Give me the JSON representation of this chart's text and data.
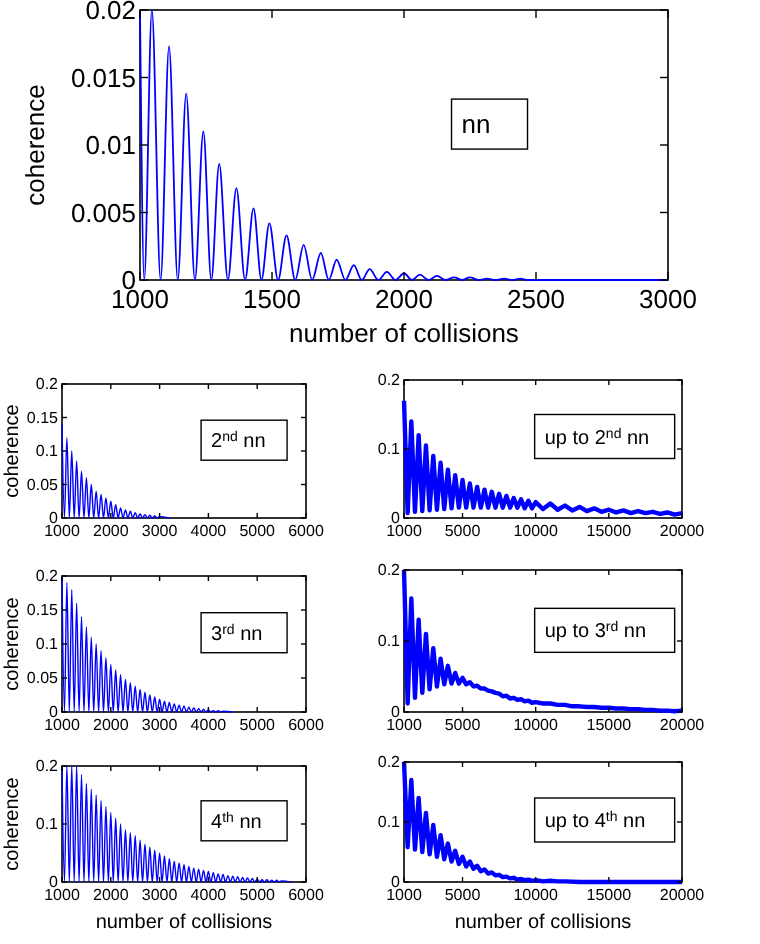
{
  "chart_data": [
    {
      "type": "line",
      "xlabel": "number of collisions",
      "ylabel": "coherence",
      "annotations": [
        "nn"
      ],
      "xlim": [
        1000,
        3000
      ],
      "ylim": [
        0,
        0.02
      ],
      "xticks": [
        1000,
        1500,
        2000,
        2500,
        3000
      ],
      "yticks": [
        0,
        0.005,
        0.01,
        0.015,
        0.02
      ],
      "color": "#0000ff",
      "x": [
        1000,
        1016,
        1045,
        1078,
        1110,
        1143,
        1175,
        1208,
        1240,
        1270,
        1300,
        1333,
        1365,
        1398,
        1430,
        1460,
        1490,
        1523,
        1555,
        1588,
        1620,
        1652,
        1685,
        1715,
        1745,
        1778,
        1810,
        1840,
        1870,
        1903,
        1935,
        1968,
        2000,
        2030,
        2060,
        2093,
        2125,
        2158,
        2190,
        2220,
        2250,
        2283,
        2315,
        2345,
        2380,
        2410,
        2440,
        2470,
        2500,
        3000
      ],
      "values": [
        0.02,
        0,
        0.02,
        0,
        0.0173,
        0,
        0.0138,
        0,
        0.011,
        0,
        0.0086,
        0,
        0.0068,
        0,
        0.0053,
        0,
        0.0042,
        0,
        0.0033,
        0,
        0.0026,
        0,
        0.002,
        0,
        0.0015,
        0,
        0.0011,
        0,
        0.0008,
        0,
        0.0006,
        0,
        0.0005,
        0,
        0.0004,
        0,
        0.0003,
        0,
        0.0002,
        0,
        0.0002,
        0,
        0.0001,
        0,
        0.0001,
        0,
        0.0001,
        0,
        0,
        0
      ]
    },
    {
      "type": "line",
      "ylabel": "coherence",
      "annotations": [
        "2$^{nd}$ nn"
      ],
      "xlim": [
        1000,
        6000
      ],
      "ylim": [
        0,
        0.2
      ],
      "xticks": [
        1000,
        2000,
        3000,
        4000,
        5000,
        6000
      ],
      "yticks": [
        0,
        0.05,
        0.1,
        0.15,
        0.2
      ],
      "color": "#0000ff",
      "x": [
        1000,
        1050,
        1100,
        1150,
        1200,
        1250,
        1300,
        1350,
        1400,
        1450,
        1500,
        1550,
        1600,
        1650,
        1700,
        1750,
        1800,
        1850,
        1900,
        1950,
        2000,
        2050,
        2100,
        2150,
        2200,
        2250,
        2300,
        2350,
        2400,
        2450,
        2500,
        2550,
        2600,
        2650,
        2700,
        2750,
        2800,
        2850,
        2900,
        2950,
        3000,
        3200
      ],
      "values": [
        0.14,
        0,
        0.12,
        0,
        0.1,
        0,
        0.085,
        0,
        0.07,
        0,
        0.06,
        0,
        0.05,
        0,
        0.04,
        0,
        0.035,
        0,
        0.03,
        0,
        0.025,
        0,
        0.02,
        0,
        0.015,
        0,
        0.012,
        0,
        0.01,
        0,
        0.008,
        0,
        0.006,
        0,
        0.005,
        0,
        0.004,
        0,
        0.003,
        0,
        0.002,
        0
      ]
    },
    {
      "type": "line",
      "annotations": [
        "up to 2$^{nd}$ nn"
      ],
      "xlim": [
        1000,
        20000
      ],
      "ylim": [
        0,
        0.2
      ],
      "xticks": [
        1000,
        5000,
        10000,
        15000,
        20000
      ],
      "yticks": [
        0,
        0.1,
        0.2
      ],
      "color": "#0000ff",
      "x": [
        1000,
        1250,
        1500,
        1750,
        2000,
        2250,
        2500,
        2750,
        3000,
        3250,
        3500,
        3750,
        4000,
        4250,
        4500,
        4750,
        5000,
        5250,
        5500,
        5750,
        6000,
        6250,
        6500,
        6750,
        7000,
        7250,
        7500,
        7750,
        8000,
        8250,
        8500,
        8750,
        9000,
        9250,
        9500,
        9750,
        10000,
        10500,
        11000,
        11500,
        12000,
        12500,
        13000,
        13500,
        14000,
        14500,
        15000,
        15500,
        16000,
        16500,
        17000,
        17500,
        18000,
        18500,
        19000,
        19500,
        20000
      ],
      "values": [
        0.17,
        0.007,
        0.14,
        0.009,
        0.12,
        0.01,
        0.105,
        0.011,
        0.09,
        0.012,
        0.08,
        0.013,
        0.07,
        0.014,
        0.062,
        0.015,
        0.055,
        0.015,
        0.05,
        0.015,
        0.045,
        0.015,
        0.041,
        0.015,
        0.038,
        0.015,
        0.035,
        0.015,
        0.032,
        0.015,
        0.029,
        0.015,
        0.027,
        0.014,
        0.025,
        0.014,
        0.023,
        0.013,
        0.021,
        0.012,
        0.018,
        0.011,
        0.016,
        0.01,
        0.014,
        0.009,
        0.012,
        0.008,
        0.011,
        0.007,
        0.01,
        0.007,
        0.009,
        0.006,
        0.008,
        0.005,
        0.007
      ]
    },
    {
      "type": "line",
      "ylabel": "coherence",
      "annotations": [
        "3$^{rd}$ nn"
      ],
      "xlim": [
        1000,
        6000
      ],
      "ylim": [
        0,
        0.2
      ],
      "xticks": [
        1000,
        2000,
        3000,
        4000,
        5000,
        6000
      ],
      "yticks": [
        0,
        0.05,
        0.1,
        0.15,
        0.2
      ],
      "color": "#0000ff",
      "x": [
        1000,
        1050,
        1100,
        1150,
        1200,
        1250,
        1300,
        1350,
        1400,
        1450,
        1500,
        1550,
        1600,
        1650,
        1700,
        1750,
        1800,
        1850,
        1900,
        1950,
        2000,
        2050,
        2100,
        2150,
        2200,
        2250,
        2300,
        2350,
        2400,
        2450,
        2500,
        2550,
        2600,
        2650,
        2700,
        2750,
        2800,
        2850,
        2900,
        2950,
        3000,
        3050,
        3100,
        3150,
        3200,
        3250,
        3300,
        3350,
        3400,
        3450,
        3500,
        3550,
        3600,
        3650,
        3700,
        3750,
        3800,
        3850,
        3900,
        3950,
        4000,
        4050,
        4100,
        4150,
        4200,
        4250,
        4300,
        4500
      ],
      "values": [
        0.2,
        0,
        0.19,
        0,
        0.18,
        0,
        0.16,
        0,
        0.14,
        0,
        0.125,
        0,
        0.11,
        0,
        0.1,
        0,
        0.09,
        0,
        0.08,
        0,
        0.07,
        0,
        0.062,
        0,
        0.055,
        0,
        0.048,
        0,
        0.043,
        0,
        0.038,
        0,
        0.033,
        0,
        0.029,
        0,
        0.025,
        0,
        0.022,
        0,
        0.019,
        0,
        0.016,
        0,
        0.014,
        0,
        0.012,
        0,
        0.01,
        0,
        0.009,
        0,
        0.007,
        0,
        0.006,
        0,
        0.005,
        0,
        0.004,
        0,
        0.003,
        0,
        0.002,
        0,
        0.002,
        0,
        0.001,
        0
      ]
    },
    {
      "type": "line",
      "annotations": [
        "up to 3$^{rd}$ nn"
      ],
      "xlim": [
        1000,
        20000
      ],
      "ylim": [
        0,
        0.2
      ],
      "xticks": [
        1000,
        5000,
        10000,
        15000,
        20000
      ],
      "yticks": [
        0,
        0.1,
        0.2
      ],
      "color": "#0000ff",
      "x": [
        1000,
        1250,
        1500,
        1750,
        2000,
        2250,
        2500,
        2750,
        3000,
        3250,
        3500,
        3750,
        4000,
        4250,
        4500,
        4750,
        5000,
        5250,
        5500,
        5750,
        6000,
        6250,
        6500,
        6750,
        7000,
        7250,
        7500,
        7750,
        8000,
        8250,
        8500,
        8750,
        9000,
        9250,
        9500,
        9750,
        10000,
        10500,
        11000,
        11500,
        12000,
        12500,
        13000,
        13500,
        14000,
        14500,
        15000,
        15500,
        16000,
        16500,
        17000,
        17500,
        18000,
        18500,
        19000,
        19500,
        20000
      ],
      "values": [
        0.2,
        0.012,
        0.16,
        0.02,
        0.13,
        0.027,
        0.11,
        0.032,
        0.09,
        0.036,
        0.075,
        0.039,
        0.065,
        0.04,
        0.055,
        0.04,
        0.048,
        0.039,
        0.042,
        0.036,
        0.037,
        0.033,
        0.033,
        0.03,
        0.029,
        0.027,
        0.026,
        0.022,
        0.023,
        0.019,
        0.02,
        0.017,
        0.018,
        0.015,
        0.016,
        0.013,
        0.014,
        0.012,
        0.012,
        0.01,
        0.01,
        0.008,
        0.008,
        0.007,
        0.007,
        0.006,
        0.006,
        0.005,
        0.005,
        0.004,
        0.004,
        0.003,
        0.003,
        0.002,
        0.002,
        0.001,
        0.002
      ]
    },
    {
      "type": "line",
      "xlabel": "number of collisions",
      "ylabel": "coherence",
      "annotations": [
        "4$^{th}$ nn"
      ],
      "xlim": [
        1000,
        6000
      ],
      "ylim": [
        0,
        0.2
      ],
      "xticks": [
        1000,
        2000,
        3000,
        4000,
        5000,
        6000
      ],
      "yticks": [
        0,
        0.1,
        0.2
      ],
      "color": "#0000ff",
      "x": [
        1000,
        1050,
        1100,
        1150,
        1200,
        1250,
        1300,
        1350,
        1400,
        1450,
        1500,
        1550,
        1600,
        1650,
        1700,
        1750,
        1800,
        1850,
        1900,
        1950,
        2000,
        2050,
        2100,
        2150,
        2200,
        2250,
        2300,
        2350,
        2400,
        2450,
        2500,
        2550,
        2600,
        2650,
        2700,
        2750,
        2800,
        2850,
        2900,
        2950,
        3000,
        3050,
        3100,
        3150,
        3200,
        3250,
        3300,
        3350,
        3400,
        3450,
        3500,
        3550,
        3600,
        3650,
        3700,
        3750,
        3800,
        3850,
        3900,
        3950,
        4000,
        4050,
        4100,
        4150,
        4200,
        4250,
        4300,
        4350,
        4400,
        4450,
        4500,
        4550,
        4600,
        4650,
        4700,
        4750,
        4800,
        4850,
        4900,
        4950,
        5000,
        5050,
        5100,
        5150,
        5200,
        5250,
        5300,
        5350,
        5400,
        5450,
        5500,
        5700
      ],
      "values": [
        0.2,
        0,
        0.2,
        0,
        0.2,
        0,
        0.2,
        0,
        0.185,
        0,
        0.17,
        0,
        0.16,
        0,
        0.15,
        0,
        0.14,
        0,
        0.13,
        0,
        0.12,
        0,
        0.11,
        0,
        0.1,
        0,
        0.09,
        0,
        0.085,
        0,
        0.08,
        0,
        0.072,
        0,
        0.065,
        0,
        0.06,
        0,
        0.055,
        0,
        0.05,
        0,
        0.045,
        0,
        0.04,
        0,
        0.036,
        0,
        0.033,
        0,
        0.03,
        0,
        0.027,
        0,
        0.024,
        0,
        0.022,
        0,
        0.02,
        0,
        0.018,
        0,
        0.016,
        0,
        0.014,
        0,
        0.013,
        0,
        0.011,
        0,
        0.01,
        0,
        0.009,
        0,
        0.008,
        0,
        0.007,
        0,
        0.006,
        0,
        0.005,
        0,
        0.004,
        0,
        0.004,
        0,
        0.003,
        0,
        0.003,
        0,
        0.002,
        0
      ]
    },
    {
      "type": "line",
      "xlabel": "number of collisions",
      "annotations": [
        "up to 4$^{th}$ nn"
      ],
      "xlim": [
        1000,
        20000
      ],
      "ylim": [
        0,
        0.2
      ],
      "xticks": [
        1000,
        5000,
        10000,
        15000,
        20000
      ],
      "yticks": [
        0,
        0.1,
        0.2
      ],
      "color": "#0000ff",
      "x": [
        1000,
        1250,
        1500,
        1750,
        2000,
        2250,
        2500,
        2750,
        3000,
        3250,
        3500,
        3750,
        4000,
        4250,
        4500,
        4750,
        5000,
        5250,
        5500,
        5750,
        6000,
        6250,
        6500,
        6750,
        7000,
        7250,
        7500,
        7750,
        8000,
        8250,
        8500,
        8750,
        9000,
        9250,
        9500,
        9750,
        10000,
        10500,
        11000,
        11500,
        12000,
        13000,
        20000
      ],
      "values": [
        0.2,
        0.058,
        0.17,
        0.054,
        0.14,
        0.05,
        0.115,
        0.046,
        0.095,
        0.042,
        0.078,
        0.038,
        0.064,
        0.034,
        0.052,
        0.03,
        0.042,
        0.026,
        0.034,
        0.022,
        0.027,
        0.018,
        0.021,
        0.014,
        0.016,
        0.011,
        0.012,
        0.008,
        0.009,
        0.006,
        0.007,
        0.004,
        0.005,
        0.003,
        0.004,
        0.002,
        0.003,
        0.001,
        0.002,
        0.001,
        0.001,
        0,
        0
      ]
    }
  ]
}
